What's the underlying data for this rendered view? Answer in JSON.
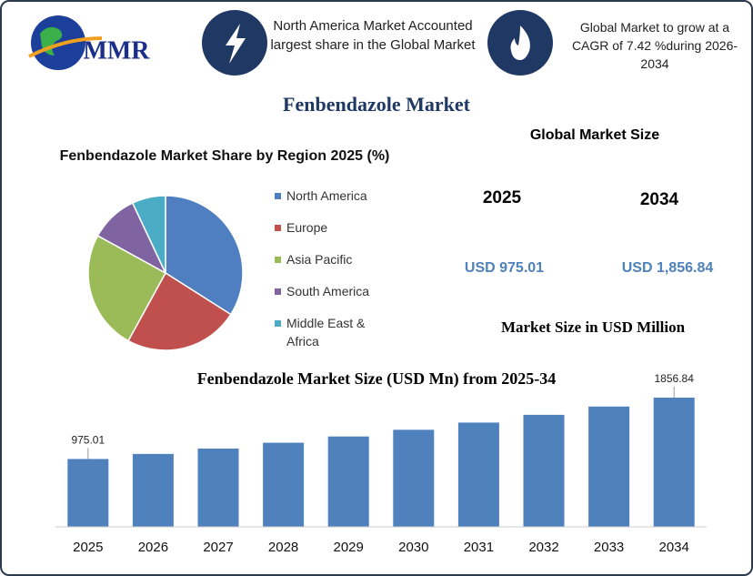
{
  "header": {
    "logo": "MMR",
    "box1": "North America Market Accounted largest share in the Global Market",
    "box2": "Global Market to grow at a CAGR of 7.42 %during 2026-2034"
  },
  "title": "Fenbendazole Market",
  "market_size": {
    "title": "Global Market Size",
    "year_start": "2025",
    "year_end": "2034",
    "value_start": "USD 975.01",
    "value_end": "USD 1,856.84",
    "unit": "Market Size in USD Million"
  },
  "chart_data": [
    {
      "type": "pie",
      "title": "Fenbendazole  Market Share by Region 2025 (%)",
      "categories": [
        "North America",
        "Europe",
        "Asia Pacific",
        "South America",
        "Middle East & Africa"
      ],
      "values": [
        34,
        24,
        25,
        10,
        7
      ],
      "colors": [
        "#4f7fc0",
        "#c0504d",
        "#9bbb59",
        "#8064a2",
        "#4bacc6"
      ]
    },
    {
      "type": "bar",
      "title": "Fenbendazole Market Size (USD Mn) from 2025-34",
      "categories": [
        "2025",
        "2026",
        "2027",
        "2028",
        "2029",
        "2030",
        "2031",
        "2032",
        "2033",
        "2034"
      ],
      "values": [
        975.01,
        1047.36,
        1125.07,
        1208.55,
        1298.22,
        1394.55,
        1498.02,
        1609.17,
        1728.57,
        1856.84
      ],
      "value_labels": [
        "975.01",
        null,
        null,
        null,
        null,
        null,
        null,
        null,
        null,
        "1856.84"
      ],
      "color": "#4f81bd",
      "ylim": [
        0,
        2000
      ]
    }
  ]
}
